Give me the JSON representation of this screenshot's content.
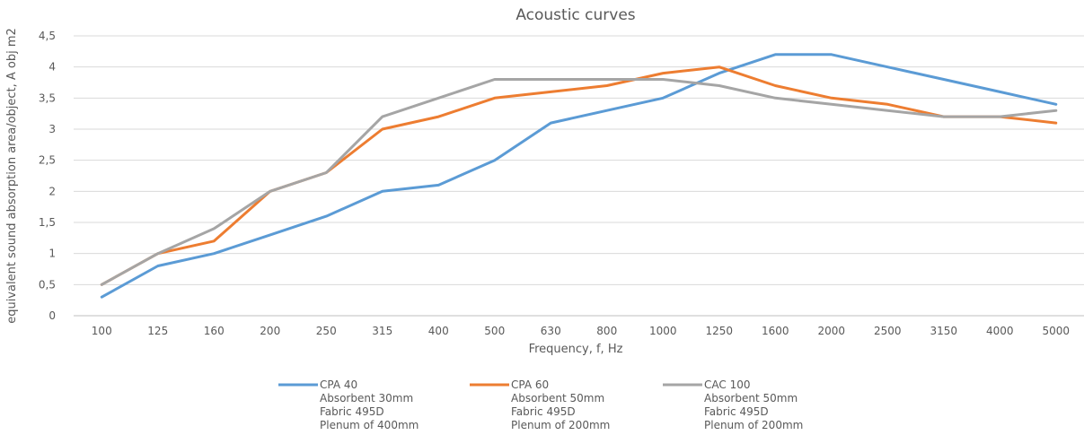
{
  "chart_data": {
    "type": "line",
    "title": "Acoustic curves",
    "xlabel": "Frequency, f, Hz",
    "ylabel": "equivalent sound absorption area/object, A obj m2",
    "categories": [
      "100",
      "125",
      "160",
      "200",
      "250",
      "315",
      "400",
      "500",
      "630",
      "800",
      "1000",
      "1250",
      "1600",
      "2000",
      "2500",
      "3150",
      "4000",
      "5000"
    ],
    "ylim": [
      0,
      4.5
    ],
    "yticks": [
      "0",
      "0,5",
      "1",
      "1,5",
      "2",
      "2,5",
      "3",
      "3,5",
      "4",
      "4,5"
    ],
    "grid": true,
    "legend_position": "bottom",
    "series": [
      {
        "name": "CPA 40",
        "legend_lines": [
          "CPA 40",
          "Absorbent 30mm",
          "Fabric 495D",
          "Plenum of 400mm"
        ],
        "color": "#5B9BD5",
        "values": [
          0.3,
          0.8,
          1.0,
          1.3,
          1.6,
          2.0,
          2.1,
          2.5,
          3.1,
          3.3,
          3.5,
          3.9,
          4.2,
          4.2,
          4.0,
          3.8,
          3.6,
          3.4
        ]
      },
      {
        "name": "CPA 60",
        "legend_lines": [
          "CPA 60",
          "Absorbent 50mm",
          "Fabric 495D",
          "Plenum of 200mm"
        ],
        "color": "#ED7D31",
        "values": [
          0.5,
          1.0,
          1.2,
          2.0,
          2.3,
          3.0,
          3.2,
          3.5,
          3.6,
          3.7,
          3.9,
          4.0,
          3.7,
          3.5,
          3.4,
          3.2,
          3.2,
          3.1
        ]
      },
      {
        "name": "CAC 100",
        "legend_lines": [
          "CAC 100",
          "Absorbent 50mm",
          "Fabric 495D",
          "Plenum of 200mm"
        ],
        "color": "#A5A5A5",
        "values": [
          0.5,
          1.0,
          1.4,
          2.0,
          2.3,
          3.2,
          3.5,
          3.8,
          3.8,
          3.8,
          3.8,
          3.7,
          3.5,
          3.4,
          3.3,
          3.2,
          3.2,
          3.3
        ]
      }
    ]
  }
}
